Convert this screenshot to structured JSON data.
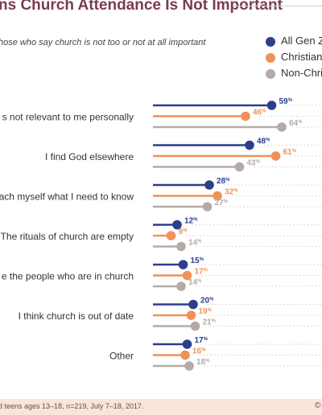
{
  "title": "ns Church Attendance Is Not Important",
  "subtitle": "hose who say church is not too or not at all important",
  "legend": [
    {
      "label": "All Gen Z",
      "color": "#2c3e8c"
    },
    {
      "label": "Christians",
      "color": "#f0915a"
    },
    {
      "label": "Non-Chri",
      "color": "#b5aaa6"
    }
  ],
  "footer": {
    "note": "d teens ages 13–18, n=219, July 7–18, 2017.",
    "mark": "©"
  },
  "chart_data": {
    "type": "dot-plot",
    "categories": [
      "s not relevant to me personally",
      "I find God elsewhere",
      "ach myself what I need to know",
      "The rituals of church are empty",
      "e the people who are in church",
      "I think church is out of date",
      "Other"
    ],
    "series": [
      {
        "name": "All Gen Z",
        "color": "#2c3e8c",
        "values": [
          59,
          48,
          28,
          12,
          15,
          20,
          17
        ]
      },
      {
        "name": "Christians",
        "color": "#f0915a",
        "values": [
          46,
          61,
          32,
          9,
          17,
          19,
          16
        ]
      },
      {
        "name": "Non-Chri",
        "color": "#b5aaa6",
        "values": [
          64,
          43,
          27,
          14,
          14,
          21,
          18
        ]
      }
    ],
    "value_suffix": "%",
    "xlim": [
      0,
      70
    ]
  }
}
